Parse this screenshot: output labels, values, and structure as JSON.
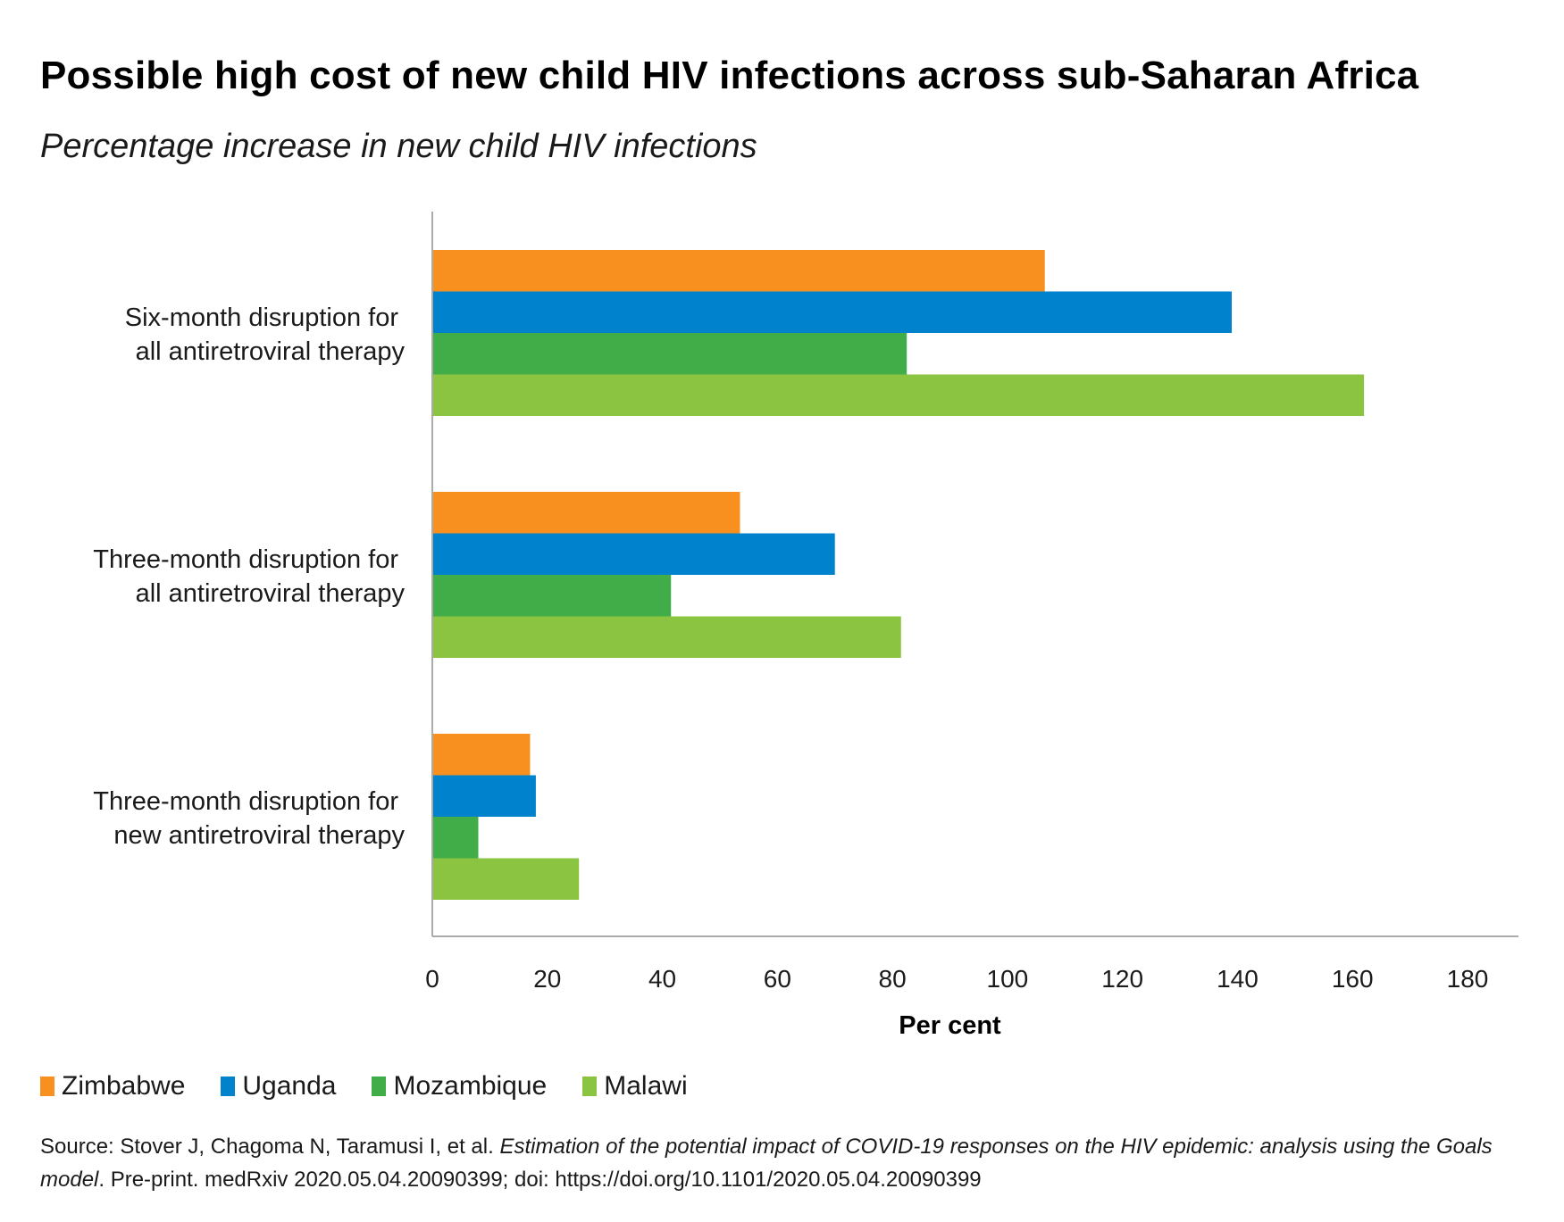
{
  "header": {
    "title": "Possible high cost of new child HIV infections across sub-Saharan Africa",
    "subtitle": "Percentage increase in new child HIV infections"
  },
  "chart_data": {
    "type": "bar",
    "orientation": "horizontal",
    "title": "Possible high cost of new child HIV infections across sub-Saharan Africa",
    "subtitle": "Percentage increase in new child HIV infections",
    "xlabel": "Per cent",
    "ylabel": "",
    "xlim": [
      0,
      180
    ],
    "x_ticks": [
      0,
      20,
      40,
      60,
      80,
      100,
      120,
      140,
      160,
      180
    ],
    "grid": false,
    "legend_position": "bottom-left",
    "categories": [
      [
        "Six-month disruption for",
        "all antiretroviral therapy"
      ],
      [
        "Three-month disruption for",
        "all antiretroviral therapy"
      ],
      [
        "Three-month disruption for",
        "new antiretroviral therapy"
      ]
    ],
    "series": [
      {
        "name": "Zimbabwe",
        "color": "#F7901E",
        "values": [
          106.5,
          53.5,
          17
        ]
      },
      {
        "name": "Uganda",
        "color": "#0083CC",
        "values": [
          139,
          70,
          18
        ]
      },
      {
        "name": "Mozambique",
        "color": "#41AD49",
        "values": [
          82.5,
          41.5,
          8
        ]
      },
      {
        "name": "Malawi",
        "color": "#8AC441",
        "values": [
          162,
          81.5,
          25.5
        ]
      }
    ]
  },
  "legend": {
    "items": [
      {
        "label": "Zimbabwe",
        "color": "#F7901E"
      },
      {
        "label": "Uganda",
        "color": "#0083CC"
      },
      {
        "label": "Mozambique",
        "color": "#41AD49"
      },
      {
        "label": "Malawi",
        "color": "#8AC441"
      }
    ]
  },
  "source": {
    "prefix": "Source: Stover J, Chagoma N, Taramusi I,  et al. ",
    "italic": "Estimation of the potential impact of COVID-19 responses on the HIV epidemic: analysis using the Goals model",
    "suffix": ". Pre-print. medRxiv 2020.05.04.20090399; doi: https://doi.org/10.1101/2020.05.04.20090399"
  }
}
